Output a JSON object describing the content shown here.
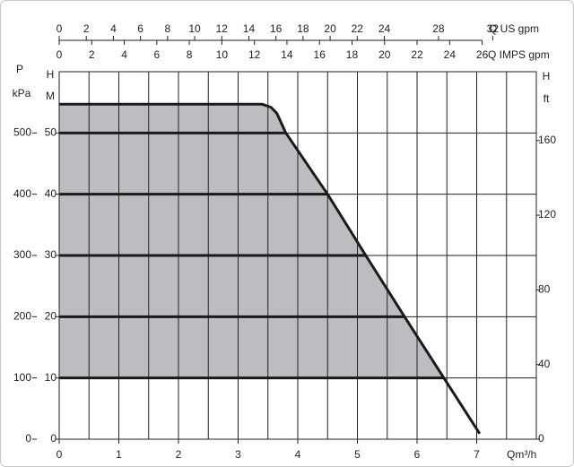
{
  "chart_data": {
    "type": "line",
    "x": [
      0,
      3.4,
      3.55,
      3.65,
      3.8,
      4.5,
      5.14,
      5.79,
      6.45,
      7.05
    ],
    "series": [
      {
        "values": [
          54.7,
          54.7,
          54.2,
          53.2,
          50,
          40,
          30,
          20,
          10,
          0.9
        ],
        "color": "#1a1a1a",
        "fill": "#bdbcc1"
      }
    ],
    "shade_floor": 10,
    "xlim": [
      0,
      8
    ],
    "xticks": [
      0,
      1,
      2,
      3,
      4,
      5,
      6,
      7
    ],
    "xlabel": "Qm³/h",
    "ylim": [
      0,
      60
    ],
    "yticks": [
      0,
      10,
      20,
      30,
      40,
      50
    ],
    "ylabel": [
      "H",
      "M"
    ],
    "kpa_axis": {
      "label": [
        "P",
        "kPa"
      ],
      "lim": [
        0,
        600
      ],
      "ticks": [
        0,
        100,
        200,
        300,
        400,
        500
      ]
    },
    "y2lim": [
      0,
      196.85
    ],
    "y2ticks": [
      0,
      40,
      80,
      120,
      160
    ],
    "y2label": [
      "H",
      "ft"
    ],
    "us_axis": {
      "label": "Q US gpm",
      "lim": [
        0,
        35.22
      ],
      "ticks": [
        0,
        2,
        4,
        6,
        8,
        10,
        12,
        14,
        16,
        18,
        20,
        22,
        24,
        28,
        32
      ]
    },
    "imps_axis": {
      "label": "Q IMPS gpm",
      "lim": [
        0,
        29.33
      ],
      "ticks": [
        0,
        2,
        4,
        6,
        8,
        10,
        12,
        14,
        16,
        18,
        20,
        22,
        24,
        26
      ]
    },
    "grid": true
  }
}
